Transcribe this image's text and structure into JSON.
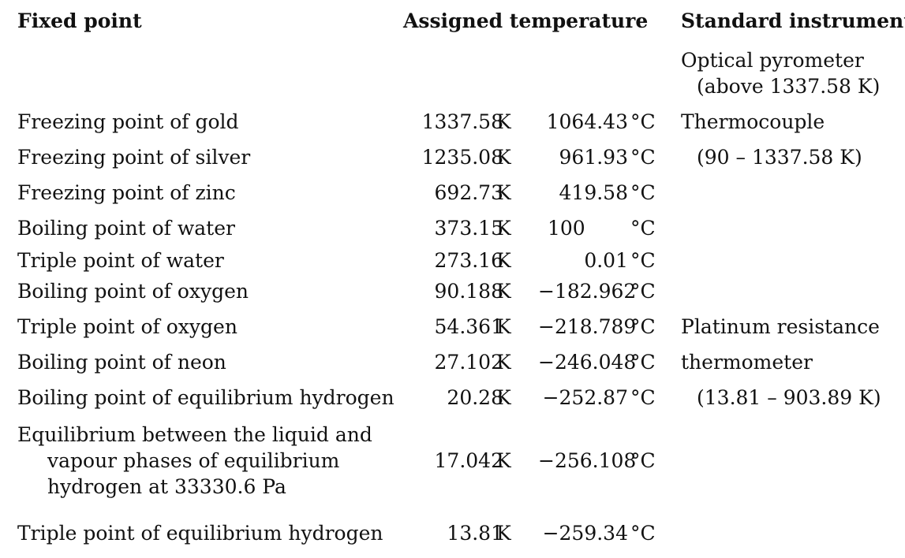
{
  "headers": {
    "fixed_point": "Fixed point",
    "assigned_temperature": "Assigned temperature",
    "standard_instrument": "Standard instrument"
  },
  "instrument_notes": {
    "optical_pyrometer": "Optical pyrometer",
    "optical_range": "(above 1337.58 K)",
    "thermocouple": "Thermocouple",
    "thermocouple_range": "(90 – 1337.58 K)",
    "platinum_1": "Platinum resistance",
    "platinum_2": "thermometer",
    "platinum_range": "(13.81 – 903.89 K)"
  },
  "rows": [
    {
      "name": "Freezing point of gold",
      "k": "1337.58",
      "k_unit": "K",
      "c": "1064.43",
      "c_unit": "°C"
    },
    {
      "name": "Freezing point of silver",
      "k": "1235.08",
      "k_unit": "K",
      "c": "961.93",
      "c_unit": "°C"
    },
    {
      "name": "Freezing point of zinc",
      "k": "692.73",
      "k_unit": "K",
      "c": "419.58",
      "c_unit": "°C"
    },
    {
      "name": "Boiling point of water",
      "k": "373.15",
      "k_unit": "K",
      "c": "100",
      "c_unit": "°C"
    },
    {
      "name": "Triple point of water",
      "k": "273.16",
      "k_unit": "K",
      "c": "0.01",
      "c_unit": "°C"
    },
    {
      "name": "Boiling point of oxygen",
      "k": "90.188",
      "k_unit": "K",
      "c": "−182.962",
      "c_unit": "°C"
    },
    {
      "name": "Triple point of oxygen",
      "k": "54.361",
      "k_unit": "K",
      "c": "−218.789",
      "c_unit": "°C"
    },
    {
      "name": "Boiling point of neon",
      "k": "27.102",
      "k_unit": "K",
      "c": "−246.048",
      "c_unit": "°C"
    },
    {
      "name": "Boiling point of equilibrium hydrogen",
      "k": "20.28",
      "k_unit": "K",
      "c": "−252.87",
      "c_unit": "°C"
    },
    {
      "name_lines": [
        "Equilibrium between the liquid and",
        "vapour phases of equilibrium",
        "hydrogen at 33330.6 Pa"
      ],
      "k": "17.042",
      "k_unit": "K",
      "c": "−256.108",
      "c_unit": "°C"
    },
    {
      "name": "Triple point of equilibrium hydrogen",
      "k": "13.81",
      "k_unit": "K",
      "c": "−259.34",
      "c_unit": "°C"
    }
  ]
}
